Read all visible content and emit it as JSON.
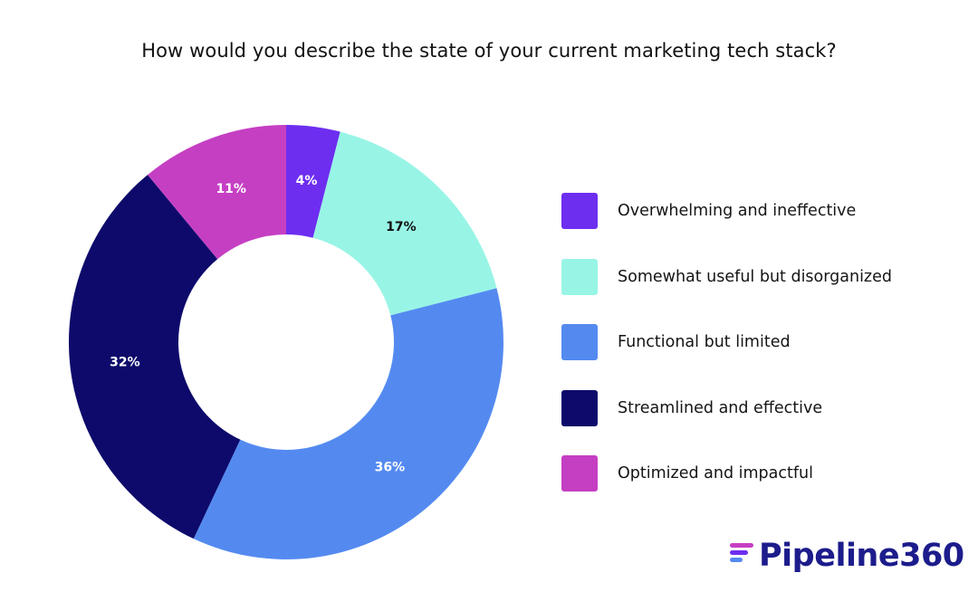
{
  "chart_data": {
    "type": "pie",
    "style": "donut",
    "title": "How would you describe the state of your current marketing tech stack?",
    "categories": [
      "Overwhelming and ineffective",
      "Somewhat useful but disorganized",
      "Functional but limited",
      "Streamlined and effective",
      "Optimized and impactful"
    ],
    "values": [
      4,
      17,
      36,
      32,
      11
    ],
    "labels": [
      "4%",
      "17%",
      "36%",
      "32%",
      "11%"
    ],
    "colors": [
      "#6d2ef0",
      "#98f5e6",
      "#548af0",
      "#0d0a6b",
      "#c53fc3"
    ],
    "label_colors": [
      "#ffffff",
      "#111111",
      "#ffffff",
      "#ffffff",
      "#ffffff"
    ],
    "legend_position": "right"
  },
  "branding": {
    "logo_text": "Pipeline360",
    "logo_text_color": "#1c1c8c",
    "logo_mark_colors": [
      "#c53fc3",
      "#6d2ef0",
      "#548af0"
    ]
  }
}
